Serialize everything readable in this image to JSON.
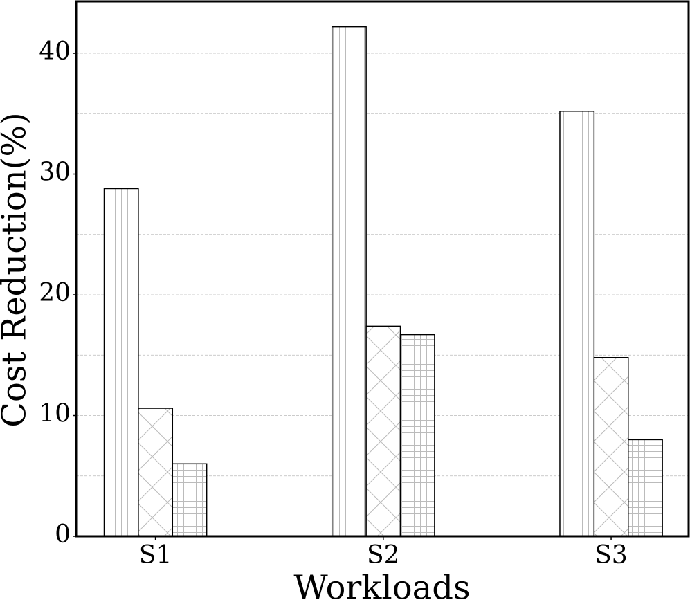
{
  "chart_data": {
    "type": "bar",
    "x_label": "Workloads",
    "y_label": "Cost Reduction(%)",
    "categories": [
      "S1",
      "S2",
      "S3"
    ],
    "series": [
      {
        "color": "#ffffff",
        "hatch": "|",
        "values": [
          28.8,
          42.2,
          35.2
        ]
      },
      {
        "color": "#ffffff",
        "hatch": "x",
        "values": [
          10.6,
          17.4,
          14.8
        ]
      },
      {
        "color": "#ffffff",
        "hatch": "+",
        "values": [
          6.0,
          16.7,
          8.0
        ]
      }
    ],
    "ylim": [
      0,
      44.3
    ],
    "yticks": [
      0,
      10,
      20,
      30,
      40
    ],
    "minor_yticks": [
      5,
      15,
      25,
      35
    ],
    "grid": true
  }
}
